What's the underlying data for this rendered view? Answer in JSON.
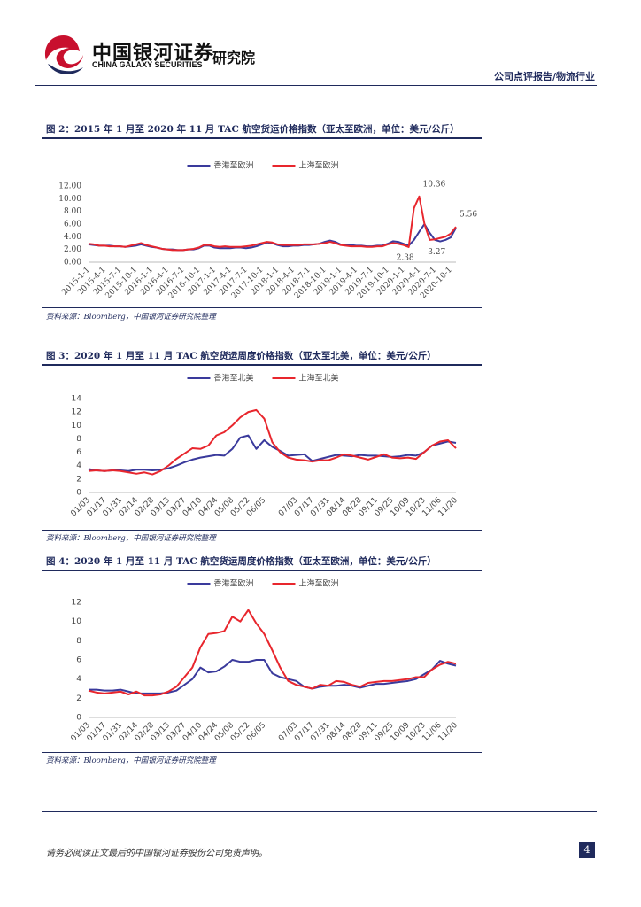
{
  "header": {
    "brand": "中国银河证券",
    "brand_en": "CHINA GALAXY SECURITIES",
    "institute": "研究院",
    "report_type": "公司点评报告/物流行业"
  },
  "chart_data": [
    {
      "type": "line",
      "title": "图 2：2015 年 1 月至 2020 年 11 月 TAC 航空货运价格指数（亚太至欧洲，单位：美元/公斤）",
      "source": "资料来源：Bloomberg，中国银河证券研究院整理",
      "legend": "top",
      "categories": [
        "2015-1-1",
        null,
        null,
        "2015-4-1",
        null,
        null,
        "2015-7-1",
        null,
        null,
        "2015-10-1",
        null,
        null,
        "2016-1-1",
        null,
        null,
        "2016-4-1",
        null,
        null,
        "2016-7-1",
        null,
        null,
        "2016-10-1",
        null,
        null,
        "2017-1-1",
        null,
        null,
        "2017-4-1",
        null,
        null,
        "2017-7-1",
        null,
        null,
        "2017-10-1",
        null,
        null,
        "2018-1-1",
        null,
        null,
        "2018-4-1",
        null,
        null,
        "2018-7-1",
        null,
        null,
        "2018-10-1",
        null,
        null,
        "2019-1-1",
        null,
        null,
        "2019-4-1",
        null,
        null,
        "2019-7-1",
        null,
        null,
        "2019-10-1",
        null,
        null,
        "2020-1-1",
        null,
        null,
        "2020-4-1",
        null,
        null,
        "2020-7-1",
        null,
        null,
        "2020-10-1",
        null
      ],
      "series": [
        {
          "name": "香港至欧洲",
          "color": "#3a3a9c",
          "values": [
            2.8,
            2.7,
            2.6,
            2.6,
            2.6,
            2.5,
            2.5,
            2.4,
            2.5,
            2.6,
            2.8,
            2.6,
            2.4,
            2.3,
            2.1,
            2.0,
            2.0,
            1.9,
            1.9,
            2.0,
            2.0,
            2.2,
            2.6,
            2.6,
            2.3,
            2.2,
            2.2,
            2.2,
            2.3,
            2.3,
            2.2,
            2.3,
            2.5,
            2.8,
            3.1,
            3.0,
            2.7,
            2.5,
            2.5,
            2.6,
            2.6,
            2.7,
            2.7,
            2.8,
            2.9,
            3.2,
            3.4,
            3.2,
            2.8,
            2.7,
            2.7,
            2.6,
            2.6,
            2.5,
            2.5,
            2.6,
            2.6,
            2.9,
            3.3,
            3.2,
            2.9,
            2.6,
            3.5,
            4.8,
            6.0,
            4.6,
            3.5,
            3.27,
            3.5,
            3.9,
            5.4
          ],
          "value_labels": [
            null,
            null,
            null,
            null,
            null,
            null,
            null,
            null,
            null,
            null,
            null,
            null,
            null,
            null,
            null,
            null,
            null,
            null,
            null,
            null,
            null,
            null,
            null,
            null,
            null,
            null,
            null,
            null,
            null,
            null,
            null,
            null,
            null,
            null,
            null,
            null,
            null,
            null,
            null,
            null,
            null,
            null,
            null,
            null,
            null,
            null,
            null,
            null,
            null,
            null,
            null,
            null,
            null,
            null,
            null,
            null,
            null,
            null,
            null,
            null,
            null,
            null,
            null,
            null,
            null,
            null,
            null,
            "3.27",
            null,
            null,
            null
          ]
        },
        {
          "name": "上海至欧洲",
          "color": "#e8262d",
          "values": [
            2.9,
            2.8,
            2.6,
            2.6,
            2.5,
            2.5,
            2.5,
            2.4,
            2.6,
            2.8,
            3.0,
            2.7,
            2.5,
            2.3,
            2.1,
            2.0,
            1.9,
            1.9,
            1.9,
            2.0,
            2.1,
            2.3,
            2.7,
            2.7,
            2.5,
            2.4,
            2.5,
            2.4,
            2.4,
            2.4,
            2.5,
            2.6,
            2.8,
            3.0,
            3.2,
            3.1,
            2.8,
            2.7,
            2.7,
            2.7,
            2.7,
            2.8,
            2.8,
            2.8,
            2.9,
            3.0,
            3.2,
            3.0,
            2.7,
            2.6,
            2.5,
            2.5,
            2.5,
            2.4,
            2.4,
            2.5,
            2.5,
            2.8,
            3.0,
            2.9,
            2.7,
            2.38,
            8.5,
            10.36,
            6.0,
            3.5,
            3.6,
            3.8,
            4.0,
            4.5,
            5.56
          ],
          "value_labels": [
            null,
            null,
            null,
            null,
            null,
            null,
            null,
            null,
            null,
            null,
            null,
            null,
            null,
            null,
            null,
            null,
            null,
            null,
            null,
            null,
            null,
            null,
            null,
            null,
            null,
            null,
            null,
            null,
            null,
            null,
            null,
            null,
            null,
            null,
            null,
            null,
            null,
            null,
            null,
            null,
            null,
            null,
            null,
            null,
            null,
            null,
            null,
            null,
            null,
            null,
            null,
            null,
            null,
            null,
            null,
            null,
            null,
            null,
            null,
            null,
            null,
            "2.38",
            null,
            "10.36",
            null,
            null,
            null,
            null,
            null,
            null,
            "5.56"
          ]
        }
      ],
      "ylim": [
        0,
        12
      ],
      "yticks": [
        {
          "value": 0,
          "label": "0.00"
        },
        {
          "value": 2,
          "label": "2.00"
        },
        {
          "value": 4,
          "label": "4.00"
        },
        {
          "value": 6,
          "label": "6.00"
        },
        {
          "value": 8,
          "label": "8.00"
        },
        {
          "value": 10,
          "label": "10.00"
        },
        {
          "value": 12,
          "label": "12.00"
        }
      ]
    },
    {
      "type": "line",
      "title": "图 3：2020 年 1 月至 11 月 TAC 航空货运周度价格指数（亚太至北美，单位：美元/公斤）",
      "source": "资料来源：Bloomberg，中国银河证券研究院整理",
      "legend": "top",
      "categories": [
        "01/03",
        null,
        "01/17",
        null,
        "01/31",
        null,
        "02/14",
        null,
        "02/28",
        null,
        "03/13",
        null,
        "03/27",
        null,
        "04/10",
        null,
        "04/24",
        null,
        "05/08",
        null,
        "05/22",
        null,
        "06/05",
        null,
        null,
        null,
        "07/03",
        null,
        "07/17",
        null,
        "07/31",
        null,
        "08/14",
        null,
        "08/28",
        null,
        "09/11",
        null,
        "09/25",
        null,
        "10/09",
        null,
        "10/23",
        null,
        "11/06",
        null,
        "11/20"
      ],
      "series": [
        {
          "name": "香港至北美",
          "color": "#3a3a9c",
          "values": [
            3.5,
            3.3,
            3.2,
            3.3,
            3.3,
            3.2,
            3.4,
            3.4,
            3.3,
            3.4,
            3.6,
            4.0,
            4.5,
            4.9,
            5.2,
            5.4,
            5.6,
            5.5,
            6.5,
            8.2,
            8.5,
            6.5,
            7.8,
            6.8,
            6.2,
            5.5,
            5.6,
            5.7,
            4.7,
            5.0,
            5.3,
            5.6,
            5.5,
            5.4,
            5.6,
            5.5,
            5.5,
            5.4,
            5.3,
            5.4,
            5.6,
            5.5,
            6.0,
            7.0,
            7.3,
            7.6,
            7.4
          ]
        },
        {
          "name": "上海至北美",
          "color": "#e8262d",
          "values": [
            3.2,
            3.3,
            3.2,
            3.3,
            3.2,
            3.0,
            2.8,
            3.0,
            2.7,
            3.2,
            4.0,
            5.0,
            5.8,
            6.6,
            6.5,
            7.0,
            8.5,
            9.0,
            10.0,
            11.2,
            12.0,
            12.3,
            11.0,
            7.5,
            6.0,
            5.2,
            4.9,
            4.8,
            4.6,
            4.8,
            4.8,
            5.2,
            5.7,
            5.5,
            5.2,
            4.9,
            5.3,
            5.7,
            5.2,
            5.1,
            5.2,
            5.0,
            6.0,
            7.0,
            7.6,
            7.8,
            6.6
          ]
        }
      ],
      "ylim": [
        0,
        14
      ],
      "yticks": [
        0,
        2,
        4,
        6,
        8,
        10,
        12,
        14
      ]
    },
    {
      "type": "line",
      "title": "图 4：2020 年 1 月至 11 月 TAC 航空货运周度价格指数（亚太至欧洲，单位：美元/公斤）",
      "source": "资料来源：Bloomberg，中国银河证券研究院整理",
      "legend": "top",
      "categories": [
        "01/03",
        null,
        "01/17",
        null,
        "01/31",
        null,
        "02/14",
        null,
        "02/28",
        null,
        "03/13",
        null,
        "03/27",
        null,
        "04/10",
        null,
        "04/24",
        null,
        "05/08",
        null,
        "05/22",
        null,
        "06/05",
        null,
        null,
        null,
        "07/03",
        null,
        "07/17",
        null,
        "07/31",
        null,
        "08/14",
        null,
        "08/28",
        null,
        "09/11",
        null,
        "09/25",
        null,
        "10/09",
        null,
        "10/23",
        null,
        "11/06",
        null,
        "11/20"
      ],
      "series": [
        {
          "name": "香港至欧洲",
          "color": "#3a3a9c",
          "values": [
            2.9,
            2.9,
            2.8,
            2.8,
            2.9,
            2.7,
            2.5,
            2.5,
            2.5,
            2.5,
            2.6,
            2.8,
            3.4,
            4.0,
            5.2,
            4.7,
            4.8,
            5.3,
            6.0,
            5.8,
            5.8,
            6.0,
            6.0,
            4.6,
            4.2,
            4.0,
            3.8,
            3.2,
            3.0,
            3.2,
            3.3,
            3.3,
            3.4,
            3.3,
            3.1,
            3.3,
            3.5,
            3.5,
            3.6,
            3.7,
            3.8,
            4.0,
            4.5,
            5.0,
            5.9,
            5.6,
            5.4
          ]
        },
        {
          "name": "上海至欧洲",
          "color": "#e8262d",
          "values": [
            2.8,
            2.6,
            2.5,
            2.6,
            2.7,
            2.4,
            2.7,
            2.3,
            2.3,
            2.4,
            2.7,
            3.2,
            4.2,
            5.2,
            7.3,
            8.7,
            8.8,
            9.0,
            10.5,
            10.0,
            11.2,
            9.8,
            8.7,
            7.0,
            5.2,
            3.8,
            3.4,
            3.2,
            3.0,
            3.4,
            3.3,
            3.8,
            3.7,
            3.4,
            3.2,
            3.6,
            3.7,
            3.8,
            3.8,
            3.9,
            4.0,
            4.2,
            4.2,
            5.0,
            5.5,
            5.8,
            5.6
          ]
        }
      ],
      "ylim": [
        0,
        12
      ],
      "yticks": [
        0,
        2,
        4,
        6,
        8,
        10,
        12
      ]
    }
  ],
  "footer": {
    "disclaimer": "请务必阅读正文最后的中国银河证券股份公司免责声明。",
    "page": 4
  }
}
